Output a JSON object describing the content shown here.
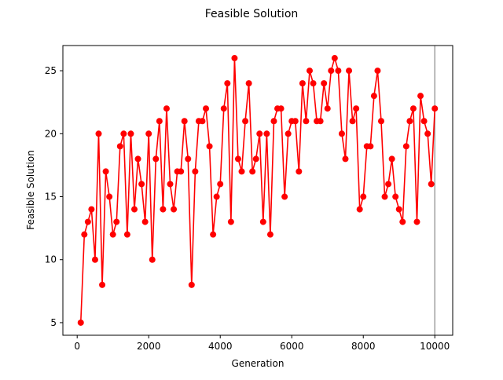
{
  "chart_data": {
    "type": "line",
    "title": "Feasible Solution",
    "xlabel": "Generation",
    "ylabel": "Feasible Solution",
    "xlim": [
      -400,
      10500
    ],
    "ylim": [
      4.0,
      27.0
    ],
    "xticks": [
      0,
      2000,
      4000,
      6000,
      8000,
      10000
    ],
    "yticks": [
      5,
      10,
      15,
      20,
      25
    ],
    "grid": false,
    "vline_x": 10000,
    "colors": {
      "series": "#ff0000",
      "vline": "#a0a0a0"
    },
    "series": [
      {
        "x": [
          100,
          200,
          300,
          400,
          500,
          600,
          700,
          800,
          900,
          1000,
          1100,
          1200,
          1300,
          1400,
          1500,
          1600,
          1700,
          1800,
          1900,
          2000,
          2100,
          2200,
          2300,
          2400,
          2500,
          2600,
          2700,
          2800,
          2900,
          3000,
          3100,
          3200,
          3300,
          3400,
          3500,
          3600,
          3700,
          3800,
          3900,
          4000,
          4100,
          4200,
          4300,
          4400,
          4500,
          4600,
          4700,
          4800,
          4900,
          5000,
          5100,
          5200,
          5300,
          5400,
          5500,
          5600,
          5700,
          5800,
          5900,
          6000,
          6100,
          6200,
          6300,
          6400,
          6500,
          6600,
          6700,
          6800,
          6900,
          7000,
          7100,
          7200,
          7300,
          7400,
          7500,
          7600,
          7700,
          7800,
          7900,
          8000,
          8100,
          8200,
          8300,
          8400,
          8500,
          8600,
          8700,
          8800,
          8900,
          9000,
          9100,
          9200,
          9300,
          9400,
          9500,
          9600,
          9700,
          9800,
          9900,
          10000
        ],
        "values": [
          5,
          12,
          13,
          14,
          10,
          20,
          8,
          17,
          15,
          12,
          13,
          19,
          20,
          12,
          20,
          14,
          18,
          16,
          13,
          20,
          10,
          18,
          21,
          14,
          22,
          16,
          14,
          17,
          17,
          21,
          18,
          8,
          17,
          21,
          21,
          22,
          19,
          12,
          15,
          16,
          22,
          24,
          13,
          26,
          18,
          17,
          21,
          24,
          17,
          18,
          20,
          13,
          20,
          12,
          21,
          22,
          22,
          15,
          20,
          21,
          21,
          17,
          24,
          21,
          25,
          24,
          21,
          21,
          24,
          22,
          25,
          26,
          25,
          20,
          18,
          25,
          21,
          22,
          14,
          15,
          19,
          19,
          23,
          25,
          21,
          15,
          16,
          18,
          15,
          14,
          13,
          19,
          21,
          22,
          13,
          23,
          21,
          20,
          16,
          22
        ]
      }
    ]
  }
}
